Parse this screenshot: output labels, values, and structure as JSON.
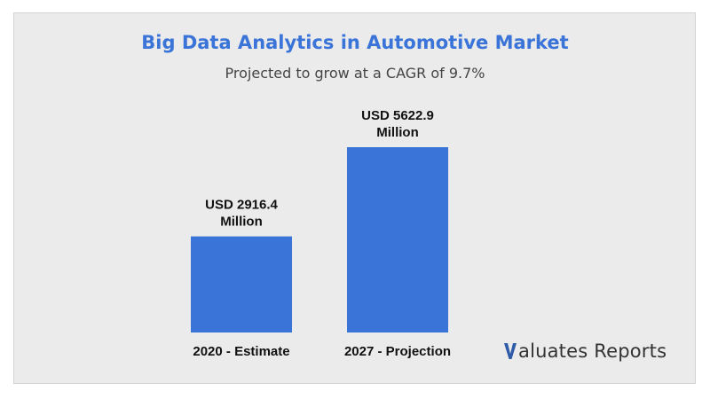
{
  "chart_data": {
    "type": "bar",
    "title": "Big Data Analytics in Automotive Market",
    "subtitle": "Projected to grow at a CAGR of 9.7%",
    "categories": [
      "2020 - Estimate",
      "2027 - Projection"
    ],
    "values": [
      2916.4,
      5622.9
    ],
    "value_labels": [
      [
        "USD 2916.4",
        "Million"
      ],
      [
        "USD 5622.9",
        "Million"
      ]
    ],
    "bar_color": "#3a74d8",
    "grid": false,
    "legend": "none"
  },
  "logo": {
    "text": "aluates Reports",
    "accent_color": "#2f5aa8"
  },
  "colors": {
    "title": "#3a74d8",
    "background": "#ebebeb"
  }
}
